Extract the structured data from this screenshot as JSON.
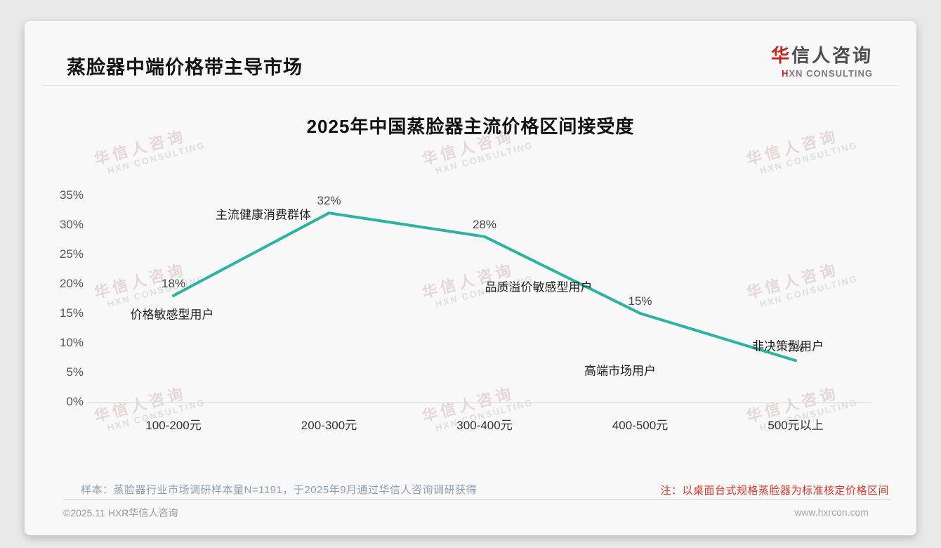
{
  "page": {
    "header_title": "蒸脸器中端价格带主导市场",
    "logo": {
      "cn_first": "华",
      "cn_rest": "信人咨询",
      "en_first": "H",
      "en_rest": "XN CONSULTING"
    },
    "notes": {
      "sample": "样本：蒸脸器行业市场调研样本量N=1191，于2025年9月通过华信人咨询调研获得",
      "red_note": "注：以桌面台式规格蒸脸器为标准核定价格区间"
    },
    "footer": {
      "copyright": "©2025.11 HXR华信人咨询",
      "website": "www.hxrcon.com"
    },
    "watermark": {
      "line1": "华信人咨询",
      "line2": "HXN CONSULTING"
    }
  },
  "chart_data": {
    "type": "line",
    "title": "2025年中国蒸脸器主流价格区间接受度",
    "categories": [
      "100-200元",
      "200-300元",
      "300-400元",
      "400-500元",
      "500元以上"
    ],
    "values": [
      18,
      32,
      28,
      15,
      7
    ],
    "data_labels": [
      "18%",
      "32%",
      "28%",
      "15%",
      "7%"
    ],
    "annotations": [
      "价格敏感型用户",
      "主流健康消费群体",
      "品质溢价敏感型用户",
      "高端市场用户",
      "非决策型用户"
    ],
    "y_ticks": [
      "0%",
      "5%",
      "10%",
      "15%",
      "20%",
      "25%",
      "30%",
      "35%"
    ],
    "ylim": [
      0,
      35
    ],
    "xlabel": "",
    "ylabel": "",
    "line_color": "#2eb3a3",
    "grid": "baseline-only",
    "legend": "none"
  }
}
